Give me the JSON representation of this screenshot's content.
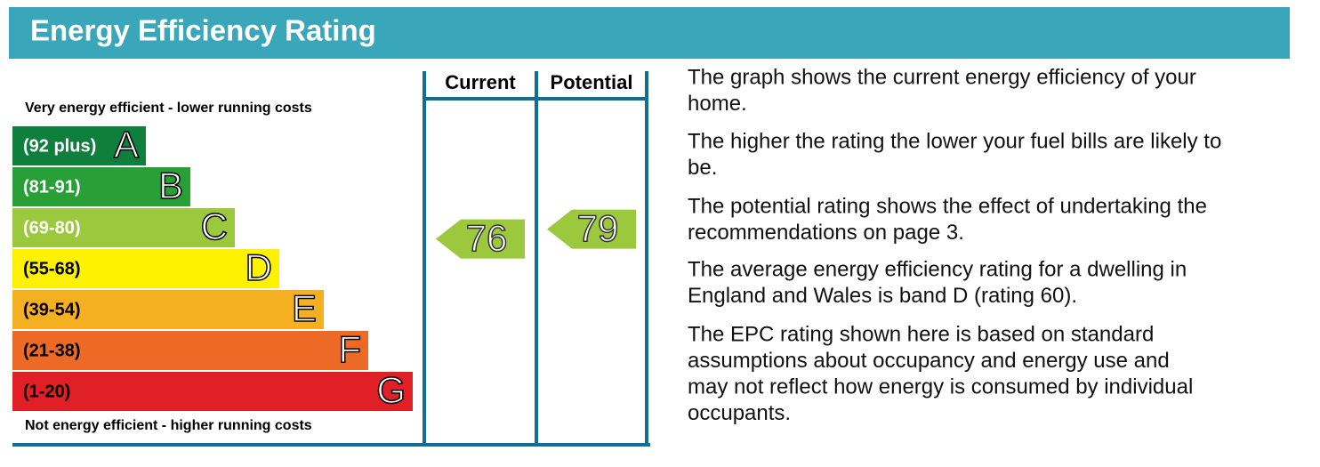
{
  "title": "Energy Efficiency Rating",
  "top_note": "Very energy efficient - lower running costs",
  "bottom_note": "Not energy efficient - higher running costs",
  "columns": [
    "Current",
    "Potential"
  ],
  "bands": [
    {
      "range": "(92 plus)",
      "letter": "A",
      "color": "#0f7f3d",
      "text_color": "#ffffff"
    },
    {
      "range": "(81-91)",
      "letter": "B",
      "color": "#29a037",
      "text_color": "#ffffff"
    },
    {
      "range": "(69-80)",
      "letter": "C",
      "color": "#9cc83e",
      "text_color": "#ffffff"
    },
    {
      "range": "(55-68)",
      "letter": "D",
      "color": "#fff200",
      "text_color": "#000000"
    },
    {
      "range": "(39-54)",
      "letter": "E",
      "color": "#f5b021",
      "text_color": "#000000"
    },
    {
      "range": "(21-38)",
      "letter": "F",
      "color": "#ec6a25",
      "text_color": "#000000"
    },
    {
      "range": "(1-20)",
      "letter": "G",
      "color": "#e11f26",
      "text_color": "#000000"
    }
  ],
  "ratings": [
    {
      "value": 76,
      "color": "#9cc83e"
    },
    {
      "value": 79,
      "color": "#9cc83e"
    }
  ],
  "paragraphs": [
    [
      "The graph shows the current energy efficiency of your",
      "home."
    ],
    [
      "The higher the rating the lower your fuel bills are likely to",
      "be."
    ],
    [
      "The potential rating shows the effect of undertaking the",
      "recommendations on page 3."
    ],
    [
      "The average energy efficiency rating for a dwelling in",
      "England and Wales is band D (rating 60)."
    ],
    [
      "The EPC rating shown here is based on standard",
      "assumptions about occupancy and energy use and",
      "may not reflect how energy is consumed by individual",
      "occupants."
    ]
  ]
}
